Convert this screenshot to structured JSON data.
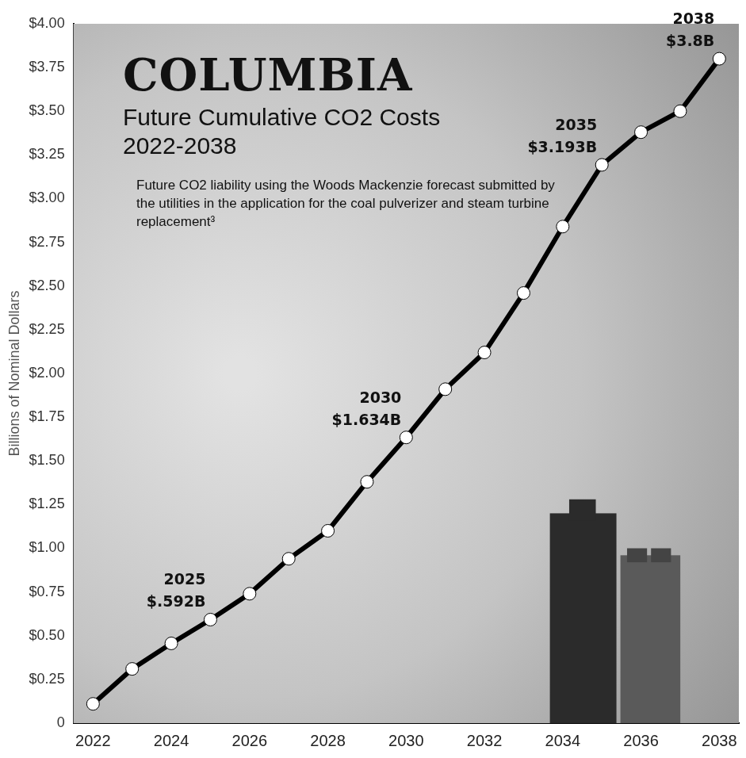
{
  "chart_data": {
    "type": "line",
    "title": "COLUMBIA",
    "subtitle": "Future Cumulative CO2 Costs 2022-2038",
    "note": "Future CO2 liability using the Woods Mackenzie forecast submitted by the utilities in the application for the coal pulverizer and steam turbine replacement³",
    "y_label": "Billions of Nominal Dollars",
    "x": [
      2022,
      2023,
      2024,
      2025,
      2026,
      2027,
      2028,
      2029,
      2030,
      2031,
      2032,
      2033,
      2034,
      2035,
      2036,
      2037,
      2038
    ],
    "values": [
      0.11,
      0.31,
      0.456,
      0.592,
      0.74,
      0.94,
      1.1,
      1.38,
      1.634,
      1.91,
      2.12,
      2.46,
      2.84,
      3.193,
      3.38,
      3.5,
      3.8
    ],
    "value_labels": [
      null,
      null,
      null,
      "$.592B",
      null,
      null,
      null,
      null,
      "$1.634B",
      null,
      null,
      null,
      null,
      "$3.193B",
      null,
      null,
      "$3.8B"
    ],
    "data_labels": true,
    "color": "#000000",
    "marker": "circle",
    "line_style": "solid",
    "xlim": [
      2021.5,
      2038.5
    ],
    "xticks": [
      2022,
      2024,
      2026,
      2028,
      2030,
      2032,
      2034,
      2036,
      2038
    ],
    "ylim": [
      0,
      4
    ],
    "yticks": [
      {
        "value": 0,
        "label": "0"
      },
      {
        "value": 0.25,
        "label": "$0.25"
      },
      {
        "value": 0.5,
        "label": "$0.50"
      },
      {
        "value": 0.75,
        "label": "$0.75"
      },
      {
        "value": 1,
        "label": "$1.00"
      },
      {
        "value": 1.25,
        "label": "$1.25"
      },
      {
        "value": 1.5,
        "label": "$1.50"
      },
      {
        "value": 1.75,
        "label": "$1.75"
      },
      {
        "value": 2,
        "label": "$2.00"
      },
      {
        "value": 2.25,
        "label": "$2.25"
      },
      {
        "value": 2.5,
        "label": "$2.50"
      },
      {
        "value": 2.75,
        "label": "$2.75"
      },
      {
        "value": 3,
        "label": "$3.00"
      },
      {
        "value": 3.25,
        "label": "$3.25"
      },
      {
        "value": 3.5,
        "label": "$3.50"
      },
      {
        "value": 3.75,
        "label": "$3.75"
      },
      {
        "value": 4,
        "label": "$4.00"
      }
    ],
    "grid": false
  }
}
